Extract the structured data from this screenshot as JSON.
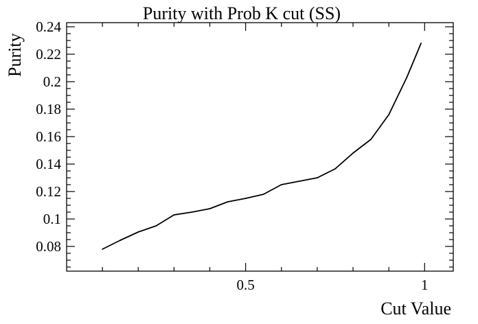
{
  "chart_data": {
    "type": "line",
    "title": "Purity with Prob K cut (SS)",
    "xlabel": "Cut Value",
    "ylabel": "Purity",
    "xlim": [
      0.0,
      1.08
    ],
    "ylim": [
      0.062,
      0.243
    ],
    "xticks": [
      0.5,
      1
    ],
    "xtick_labels": [
      "0.5",
      "1"
    ],
    "yticks": [
      0.08,
      0.1,
      0.12,
      0.14,
      0.16,
      0.18,
      0.2,
      0.22,
      0.24
    ],
    "ytick_labels": [
      "0.08",
      "0.1",
      "0.12",
      "0.14",
      "0.16",
      "0.18",
      "0.2",
      "0.22",
      "0.24"
    ],
    "grid": false,
    "series": [
      {
        "color": "#000000",
        "x": [
          0.1,
          0.15,
          0.2,
          0.25,
          0.3,
          0.35,
          0.4,
          0.45,
          0.5,
          0.55,
          0.6,
          0.65,
          0.7,
          0.75,
          0.8,
          0.85,
          0.9,
          0.95,
          0.99
        ],
        "y": [
          0.078,
          0.0845,
          0.0905,
          0.095,
          0.103,
          0.105,
          0.1075,
          0.1125,
          0.115,
          0.118,
          0.125,
          0.1275,
          0.13,
          0.1365,
          0.148,
          0.158,
          0.176,
          0.203,
          0.228
        ]
      }
    ]
  }
}
